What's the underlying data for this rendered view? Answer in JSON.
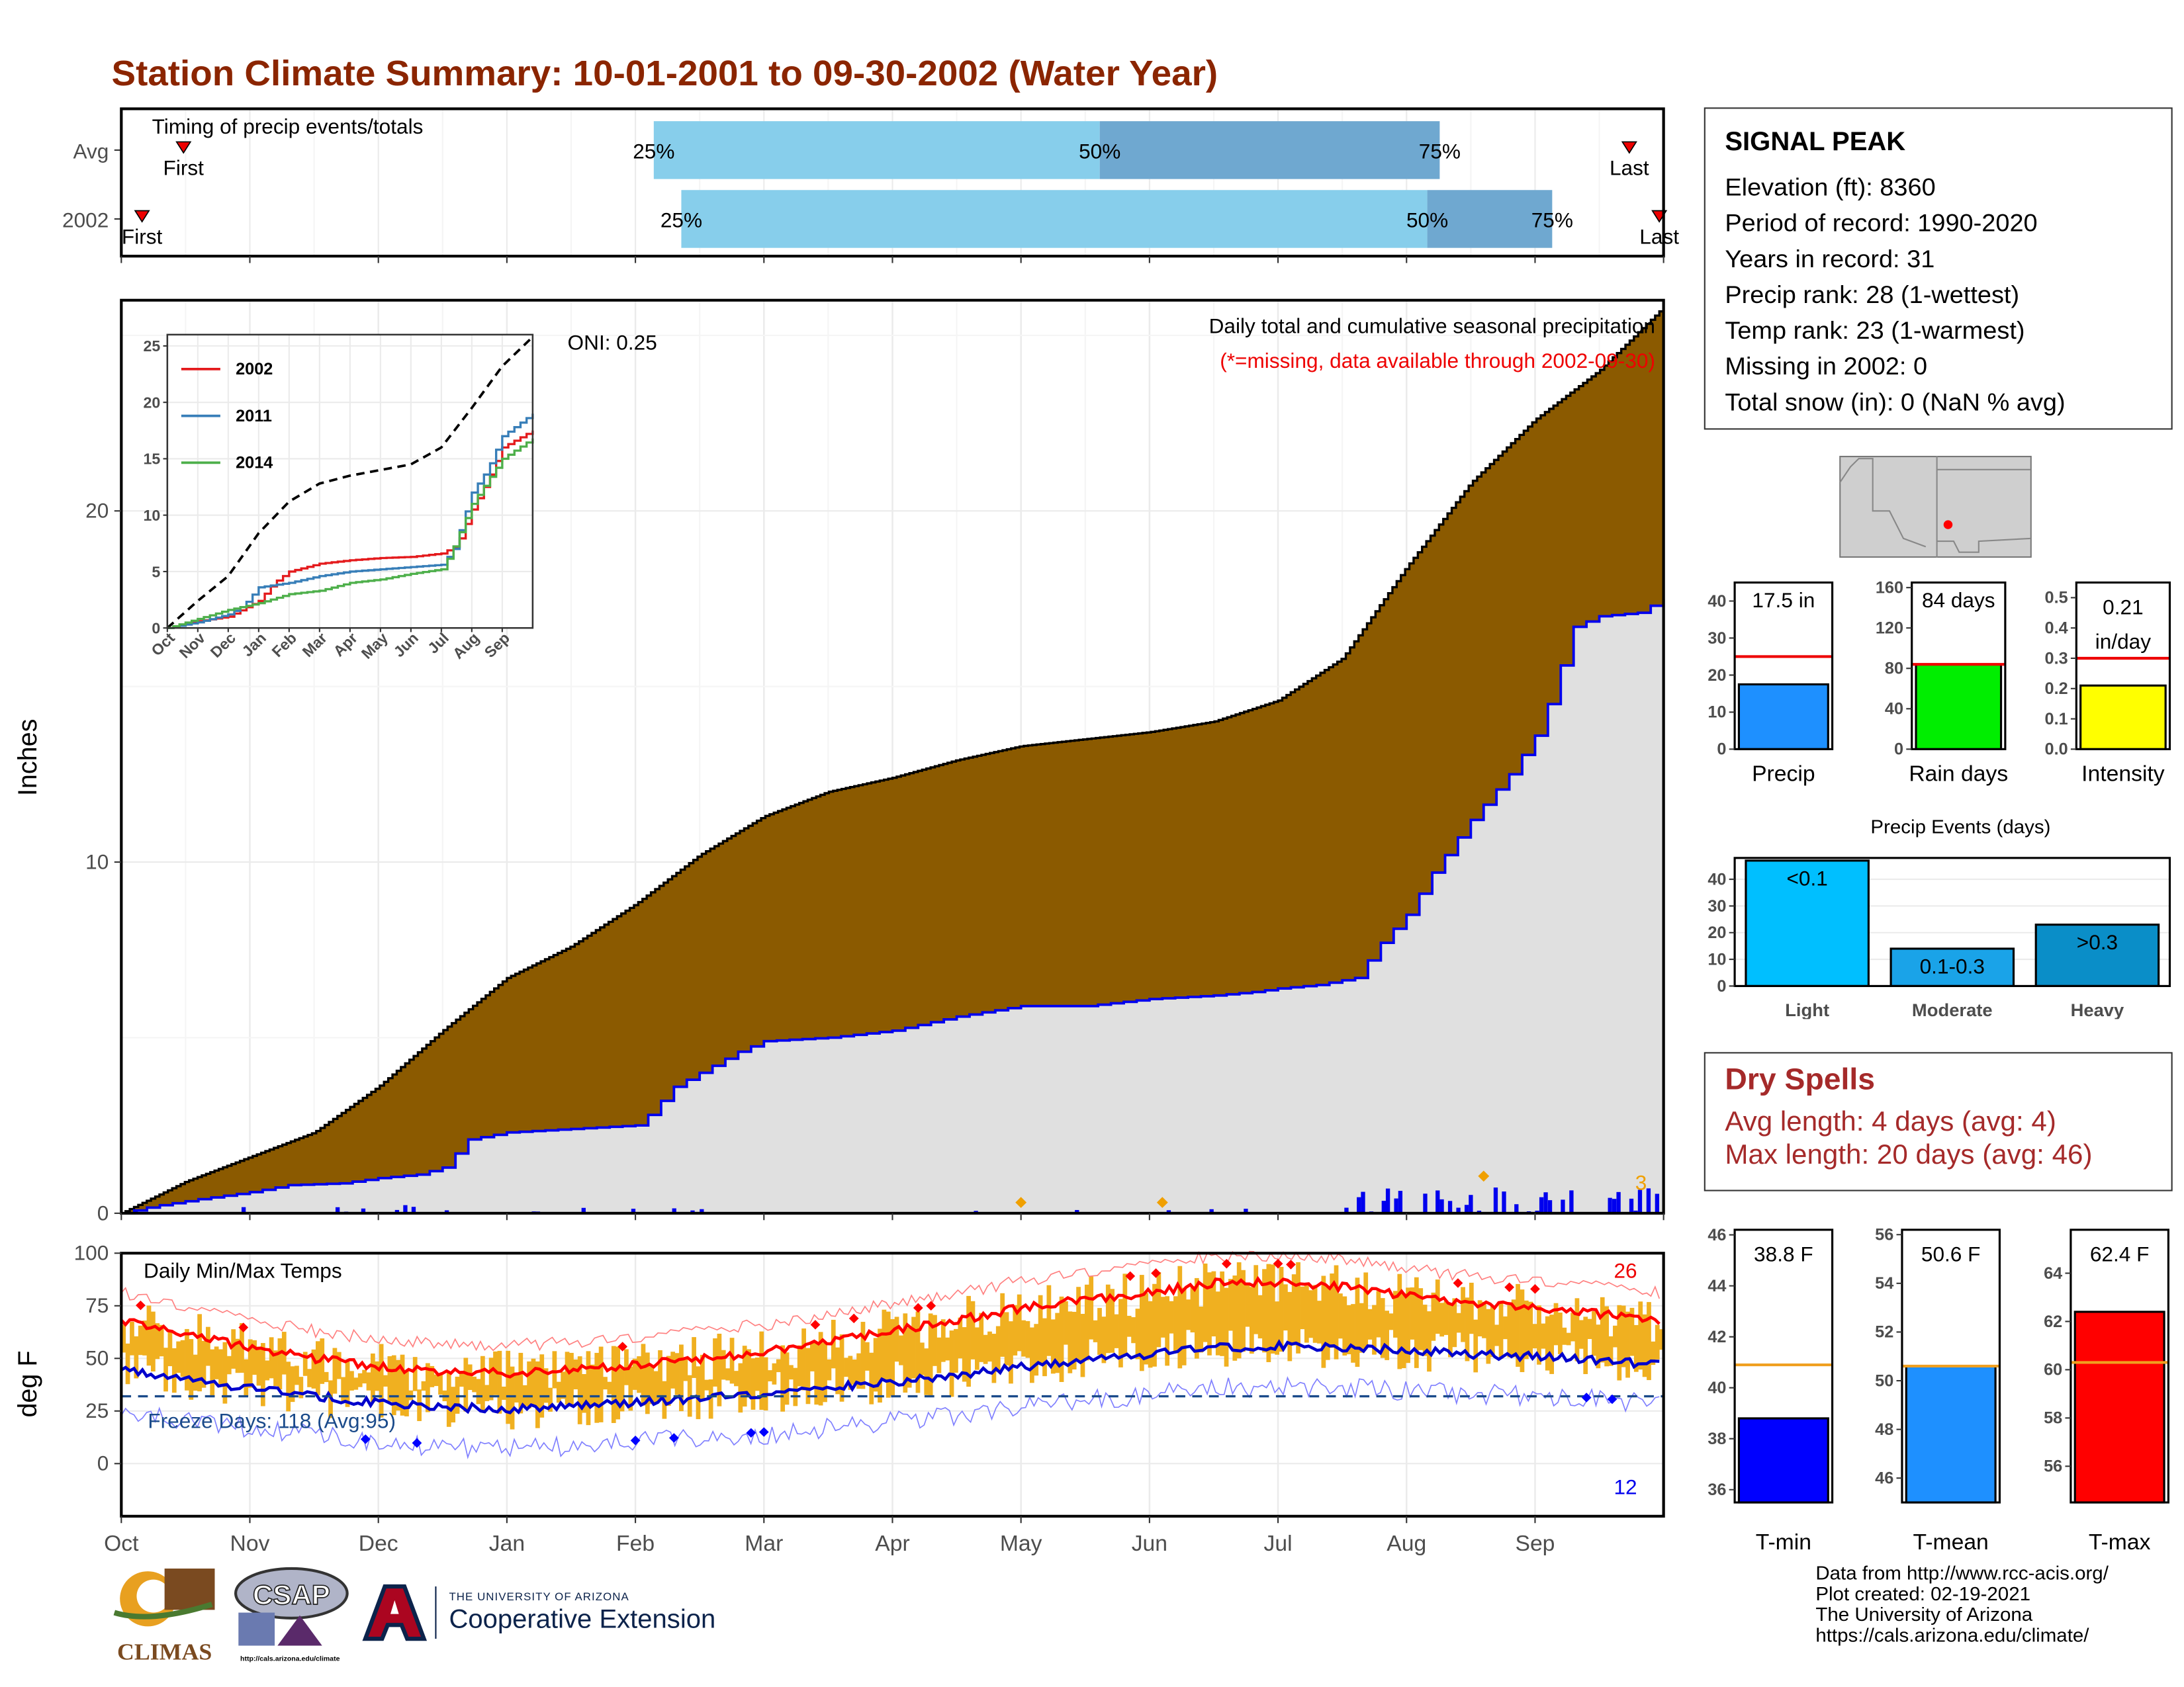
{
  "page": {
    "title": "Station Climate Summary: 10-01-2001 to 09-30-2002 (Water Year)"
  },
  "colors": {
    "title": "#8b2500",
    "cumulative_fill": "#8b5a00",
    "avg_fill": "#e0e0e0",
    "daily_bar": "#0000ee",
    "tmax": "#ff0000",
    "tmin": "#0000cc",
    "range_bar": "#f0b020",
    "dry_text": "#a52a2a",
    "quartile_light": "#87ceeb",
    "quartile_dark": "#6fa8d0"
  },
  "timing_panel": {
    "heading": "Timing of precip events/totals",
    "rows": [
      {
        "label": "Avg",
        "first_label": "First",
        "last_label": "Last",
        "p25": "25%",
        "p50": "50%",
        "p75": "75%"
      },
      {
        "label": "2002",
        "first_label": "First",
        "last_label": "Last",
        "p25": "25%",
        "p50": "50%",
        "p75": "75%"
      }
    ],
    "chart_data": {
      "type": "bar",
      "x_unit": "water-year day",
      "rows": [
        {
          "name": "Avg",
          "first": 15,
          "p25": 127,
          "p50": 231,
          "p75": 312,
          "last": 357
        },
        {
          "name": "2002",
          "first": 5,
          "p25": 133,
          "p50": 309,
          "p75": 339,
          "last": 364
        }
      ]
    }
  },
  "precip_panel": {
    "y_axis_label": "Inches",
    "oni": "ONI: 0.25",
    "subtitle": "Daily total and cumulative seasonal precipitation",
    "missing_note": "(*=missing, data available through 2002-09-30)",
    "corner_count": "3",
    "chart_data": {
      "type": "area",
      "x_unit": "month",
      "xlim": [
        "2001-10-01",
        "2002-09-30"
      ],
      "ylim": [
        0,
        26
      ],
      "yticks": [
        "0",
        "10",
        "20"
      ],
      "series": [
        {
          "name": "Average cumulative",
          "points": [
            [
              0,
              0
            ],
            [
              0.5,
              0.9
            ],
            [
              1,
              1.6
            ],
            [
              1.5,
              2.3
            ],
            [
              2,
              3.6
            ],
            [
              2.5,
              5.2
            ],
            [
              3,
              6.7
            ],
            [
              3.5,
              7.6
            ],
            [
              4,
              8.8
            ],
            [
              4.5,
              10.2
            ],
            [
              5,
              11.3
            ],
            [
              5.5,
              12.0
            ],
            [
              6,
              12.4
            ],
            [
              6.5,
              12.9
            ],
            [
              7,
              13.3
            ],
            [
              7.5,
              13.5
            ],
            [
              8,
              13.7
            ],
            [
              8.5,
              14.0
            ],
            [
              9,
              14.6
            ],
            [
              9.5,
              15.8
            ],
            [
              10,
              18.4
            ],
            [
              10.5,
              20.8
            ],
            [
              11,
              22.6
            ],
            [
              11.5,
              24.0
            ],
            [
              12,
              25.8
            ]
          ]
        },
        {
          "name": "2002 cumulative",
          "points": [
            [
              0,
              0
            ],
            [
              0.25,
              0.2
            ],
            [
              0.6,
              0.4
            ],
            [
              1.0,
              0.6
            ],
            [
              1.3,
              0.8
            ],
            [
              1.7,
              0.85
            ],
            [
              2.0,
              1.0
            ],
            [
              2.3,
              1.1
            ],
            [
              2.5,
              1.3
            ],
            [
              2.7,
              2.1
            ],
            [
              3.0,
              2.3
            ],
            [
              3.5,
              2.4
            ],
            [
              4.0,
              2.5
            ],
            [
              4.1,
              2.8
            ],
            [
              4.3,
              3.6
            ],
            [
              4.5,
              4.0
            ],
            [
              4.8,
              4.6
            ],
            [
              5.0,
              4.9
            ],
            [
              5.5,
              5.0
            ],
            [
              6.0,
              5.2
            ],
            [
              6.5,
              5.6
            ],
            [
              7.0,
              5.9
            ],
            [
              7.5,
              5.9
            ],
            [
              8.0,
              6.1
            ],
            [
              8.5,
              6.2
            ],
            [
              8.8,
              6.3
            ],
            [
              9.0,
              6.4
            ],
            [
              9.3,
              6.5
            ],
            [
              9.6,
              6.7
            ],
            [
              9.8,
              7.7
            ],
            [
              10.0,
              8.5
            ],
            [
              10.2,
              9.7
            ],
            [
              10.5,
              11.2
            ],
            [
              10.8,
              12.5
            ],
            [
              11.0,
              13.6
            ],
            [
              11.1,
              14.5
            ],
            [
              11.3,
              16.7
            ],
            [
              11.5,
              17.0
            ],
            [
              11.8,
              17.1
            ],
            [
              12.0,
              17.5
            ]
          ]
        }
      ]
    }
  },
  "inset": {
    "legend": [
      "2002",
      "2011",
      "2014"
    ],
    "chart_data": {
      "type": "line",
      "x_ticks": [
        "Oct",
        "Nov",
        "Dec",
        "Jan",
        "Feb",
        "Mar",
        "Apr",
        "May",
        "Jun",
        "Jul",
        "Aug",
        "Sep"
      ],
      "yticks": [
        "0",
        "5",
        "10",
        "15",
        "20",
        "25"
      ],
      "ylim": [
        0,
        26
      ],
      "series": [
        {
          "name": "Average",
          "points": [
            [
              0,
              0
            ],
            [
              1,
              2.4
            ],
            [
              2,
              4.6
            ],
            [
              3,
              8.4
            ],
            [
              4,
              11.2
            ],
            [
              5,
              12.8
            ],
            [
              6,
              13.5
            ],
            [
              7,
              14.0
            ],
            [
              8,
              14.5
            ],
            [
              9,
              16.0
            ],
            [
              10,
              19.5
            ],
            [
              11,
              23.2
            ],
            [
              12,
              25.8
            ]
          ]
        },
        {
          "name": "2002",
          "points": [
            [
              0,
              0
            ],
            [
              1,
              0.6
            ],
            [
              2,
              1.0
            ],
            [
              3,
              2.4
            ],
            [
              3.5,
              4.0
            ],
            [
              4,
              5.0
            ],
            [
              5,
              5.7
            ],
            [
              6,
              6.0
            ],
            [
              7,
              6.2
            ],
            [
              8,
              6.3
            ],
            [
              9,
              6.6
            ],
            [
              9.5,
              7.3
            ],
            [
              10,
              10.5
            ],
            [
              10.5,
              13.0
            ],
            [
              11,
              16.0
            ],
            [
              12,
              17.5
            ]
          ]
        },
        {
          "name": "2011",
          "points": [
            [
              0,
              0
            ],
            [
              1,
              0.5
            ],
            [
              2,
              1.2
            ],
            [
              2.5,
              2.0
            ],
            [
              3,
              3.6
            ],
            [
              4,
              4.0
            ],
            [
              5,
              4.6
            ],
            [
              6,
              5.0
            ],
            [
              7,
              5.2
            ],
            [
              8,
              5.4
            ],
            [
              9,
              5.6
            ],
            [
              9.4,
              7.0
            ],
            [
              10,
              12.0
            ],
            [
              10.5,
              14.0
            ],
            [
              11,
              17.0
            ],
            [
              12,
              19.0
            ]
          ]
        },
        {
          "name": "2014",
          "points": [
            [
              0,
              0
            ],
            [
              1,
              0.8
            ],
            [
              2,
              1.6
            ],
            [
              3,
              2.2
            ],
            [
              4,
              3.0
            ],
            [
              5,
              3.3
            ],
            [
              6,
              4.0
            ],
            [
              7,
              4.3
            ],
            [
              8,
              4.8
            ],
            [
              9,
              5.2
            ],
            [
              9.3,
              6.6
            ],
            [
              10,
              11.0
            ],
            [
              10.5,
              13.0
            ],
            [
              11,
              15.0
            ],
            [
              12,
              16.8
            ]
          ]
        }
      ]
    }
  },
  "temp_panel": {
    "y_axis_label": "deg F",
    "heading": "Daily Min/Max Temps",
    "freeze_days": "Freeze Days: 118 (Avg:95)",
    "hot_count": "26",
    "cold_count": "12",
    "chart_data": {
      "type": "line",
      "ylim": [
        -25,
        100
      ],
      "yticks": [
        "0",
        "25",
        "50",
        "75",
        "100"
      ],
      "freeze_line": 32,
      "series": [
        {
          "name": "Avg Tmax",
          "points": [
            [
              0,
              68
            ],
            [
              0.5,
              62
            ],
            [
              1,
              55
            ],
            [
              1.5,
              50
            ],
            [
              2,
              46
            ],
            [
              2.5,
              44
            ],
            [
              3,
              43
            ],
            [
              3.5,
              45
            ],
            [
              4,
              47
            ],
            [
              4.5,
              50
            ],
            [
              5,
              53
            ],
            [
              5.5,
              58
            ],
            [
              6,
              63
            ],
            [
              6.5,
              68
            ],
            [
              7,
              74
            ],
            [
              7.5,
              78
            ],
            [
              8,
              81
            ],
            [
              8.5,
              86
            ],
            [
              9,
              86
            ],
            [
              9.5,
              84
            ],
            [
              10,
              80
            ],
            [
              10.5,
              76
            ],
            [
              11,
              74
            ],
            [
              11.5,
              71
            ],
            [
              12,
              68
            ]
          ]
        },
        {
          "name": "Avg Tmin",
          "points": [
            [
              0,
              45
            ],
            [
              0.5,
              40
            ],
            [
              1,
              36
            ],
            [
              1.5,
              32
            ],
            [
              2,
              29
            ],
            [
              2.5,
              27
            ],
            [
              3,
              26
            ],
            [
              3.5,
              27
            ],
            [
              4,
              29
            ],
            [
              4.5,
              31
            ],
            [
              5,
              33
            ],
            [
              5.5,
              36
            ],
            [
              6,
              39
            ],
            [
              6.5,
              42
            ],
            [
              7,
              46
            ],
            [
              7.5,
              49
            ],
            [
              8,
              52
            ],
            [
              8.5,
              55
            ],
            [
              9,
              56
            ],
            [
              9.5,
              55
            ],
            [
              10,
              54
            ],
            [
              10.5,
              52
            ],
            [
              11,
              51
            ],
            [
              11.5,
              49
            ],
            [
              12,
              47
            ]
          ]
        }
      ]
    }
  },
  "x_axis_months": [
    "Oct",
    "Nov",
    "Dec",
    "Jan",
    "Feb",
    "Mar",
    "Apr",
    "May",
    "Jun",
    "Jul",
    "Aug",
    "Sep"
  ],
  "station": {
    "name": "SIGNAL PEAK",
    "lines": [
      "Elevation (ft): 8360",
      "Period of record: 1990-2020",
      "Years in record: 31",
      "Precip rank: 28 (1-wettest)",
      "Temp rank: 23 (1-warmest)",
      "Missing in 2002: 0",
      "Total snow (in): 0 (NaN % avg)"
    ]
  },
  "mini_bars": [
    {
      "label": "Precip",
      "value_label": "17.5 in",
      "value": 17.5,
      "avg": 25,
      "ylim": [
        0,
        45
      ],
      "yticks": [
        "0",
        "10",
        "20",
        "30",
        "40"
      ],
      "color": "#1e90ff"
    },
    {
      "label": "Rain days",
      "value_label": "84 days",
      "value": 84,
      "avg": 84,
      "ylim": [
        0,
        165
      ],
      "yticks": [
        "0",
        "40",
        "80",
        "120",
        "160"
      ],
      "color": "#00ee00"
    },
    {
      "label": "Intensity",
      "value_label_1": "0.21",
      "value_label_2": "in/day",
      "value": 0.21,
      "avg": 0.3,
      "ylim": [
        0,
        0.55
      ],
      "yticks": [
        "0.0",
        "0.1",
        "0.2",
        "0.3",
        "0.4",
        "0.5"
      ],
      "color": "#ffff00"
    }
  ],
  "precip_events": {
    "title": "Precip Events (days)",
    "chart_data": {
      "type": "bar",
      "categories": [
        "Light",
        "Moderate",
        "Heavy"
      ],
      "values": [
        47,
        14,
        23
      ],
      "bar_labels": [
        "<0.1",
        "0.1-0.3",
        ">0.3"
      ],
      "ylim": [
        0,
        48
      ],
      "yticks": [
        "0",
        "10",
        "20",
        "30",
        "40"
      ]
    }
  },
  "dry_spells": {
    "title": "Dry Spells",
    "avg_line": "Avg length: 4 days (avg: 4)",
    "max_line": "Max length: 20 days (avg: 46)"
  },
  "temp_bars": [
    {
      "label": "T-min",
      "value_label": "38.8 F",
      "value": 38.8,
      "avg": 40.9,
      "ylim": [
        35.5,
        46.2
      ],
      "yticks": [
        "36",
        "38",
        "40",
        "42",
        "44",
        "46"
      ],
      "color": "#0000ff"
    },
    {
      "label": "T-mean",
      "value_label": "50.6 F",
      "value": 50.6,
      "avg": 50.6,
      "ylim": [
        45,
        56.2
      ],
      "yticks": [
        "46",
        "48",
        "50",
        "52",
        "54",
        "56"
      ],
      "color": "#1e90ff"
    },
    {
      "label": "T-max",
      "value_label": "62.4 F",
      "value": 62.4,
      "avg": 60.3,
      "ylim": [
        54.5,
        65.8
      ],
      "yticks": [
        "56",
        "58",
        "60",
        "62",
        "64"
      ],
      "color": "#ff0000"
    }
  ],
  "footer": {
    "lines": [
      "Data from http://www.rcc-acis.org/",
      "Plot created: 02-19-2021",
      "The University of Arizona",
      "https://cals.arizona.edu/climate/"
    ],
    "logos": {
      "climas": "CLIMAS",
      "csap": "CSAP",
      "csap_url": "http://cals.arizona.edu/climate",
      "ua_small": "THE UNIVERSITY OF ARIZONA",
      "ua_big": "Cooperative Extension"
    }
  }
}
